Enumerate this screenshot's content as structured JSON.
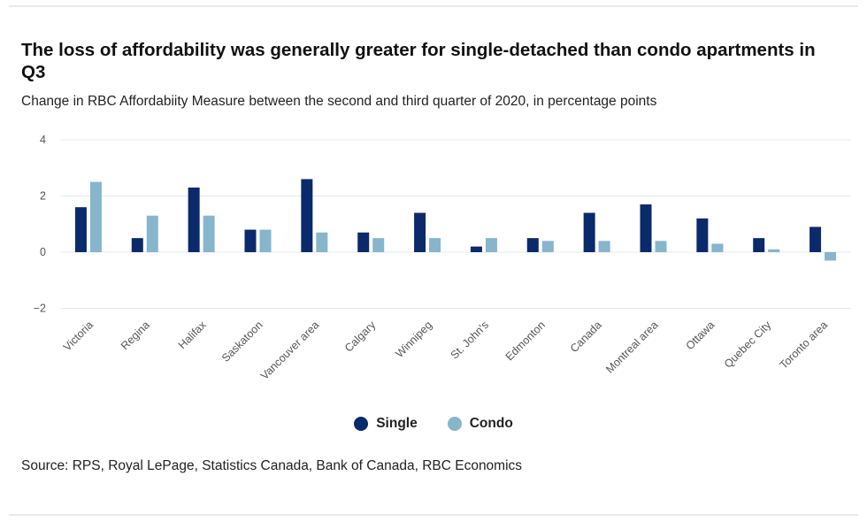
{
  "title": "The loss of affordability was generally greater for single-detached than condo apartments in Q3",
  "subtitle": "Change in RBC Affordabiity Measure between the second and third quarter of 2020, in percentage points",
  "source": "Source: RPS, Royal LePage, Statistics Canada, Bank of Canada, RBC Economics",
  "colors": {
    "single": "#0a2a6b",
    "condo": "#86b5cc",
    "grid": "#e6e9ee",
    "tick": "#555555"
  },
  "chart_data": {
    "type": "bar",
    "categories": [
      "Victoria",
      "Regina",
      "Halifax",
      "Saskatoon",
      "Vancouver area",
      "Calgary",
      "Winnipeg",
      "St. John's",
      "Edmonton",
      "Canada",
      "Montreal area",
      "Ottawa",
      "Quebec City",
      "Toronto area"
    ],
    "series": [
      {
        "name": "Single",
        "values": [
          1.6,
          0.5,
          2.3,
          0.8,
          2.6,
          0.7,
          1.4,
          0.2,
          0.5,
          1.4,
          1.7,
          1.2,
          0.5,
          0.9
        ]
      },
      {
        "name": "Condo",
        "values": [
          2.5,
          1.3,
          1.3,
          0.8,
          0.7,
          0.5,
          0.5,
          0.5,
          0.4,
          0.4,
          0.4,
          0.3,
          0.1,
          -0.3
        ]
      }
    ],
    "yticks": [
      -2,
      0,
      2,
      4
    ],
    "ytick_labels": [
      "−2",
      "0",
      "2",
      "4"
    ],
    "ylim": [
      -2,
      4
    ],
    "grid": true,
    "legend_position": "bottom-center"
  }
}
